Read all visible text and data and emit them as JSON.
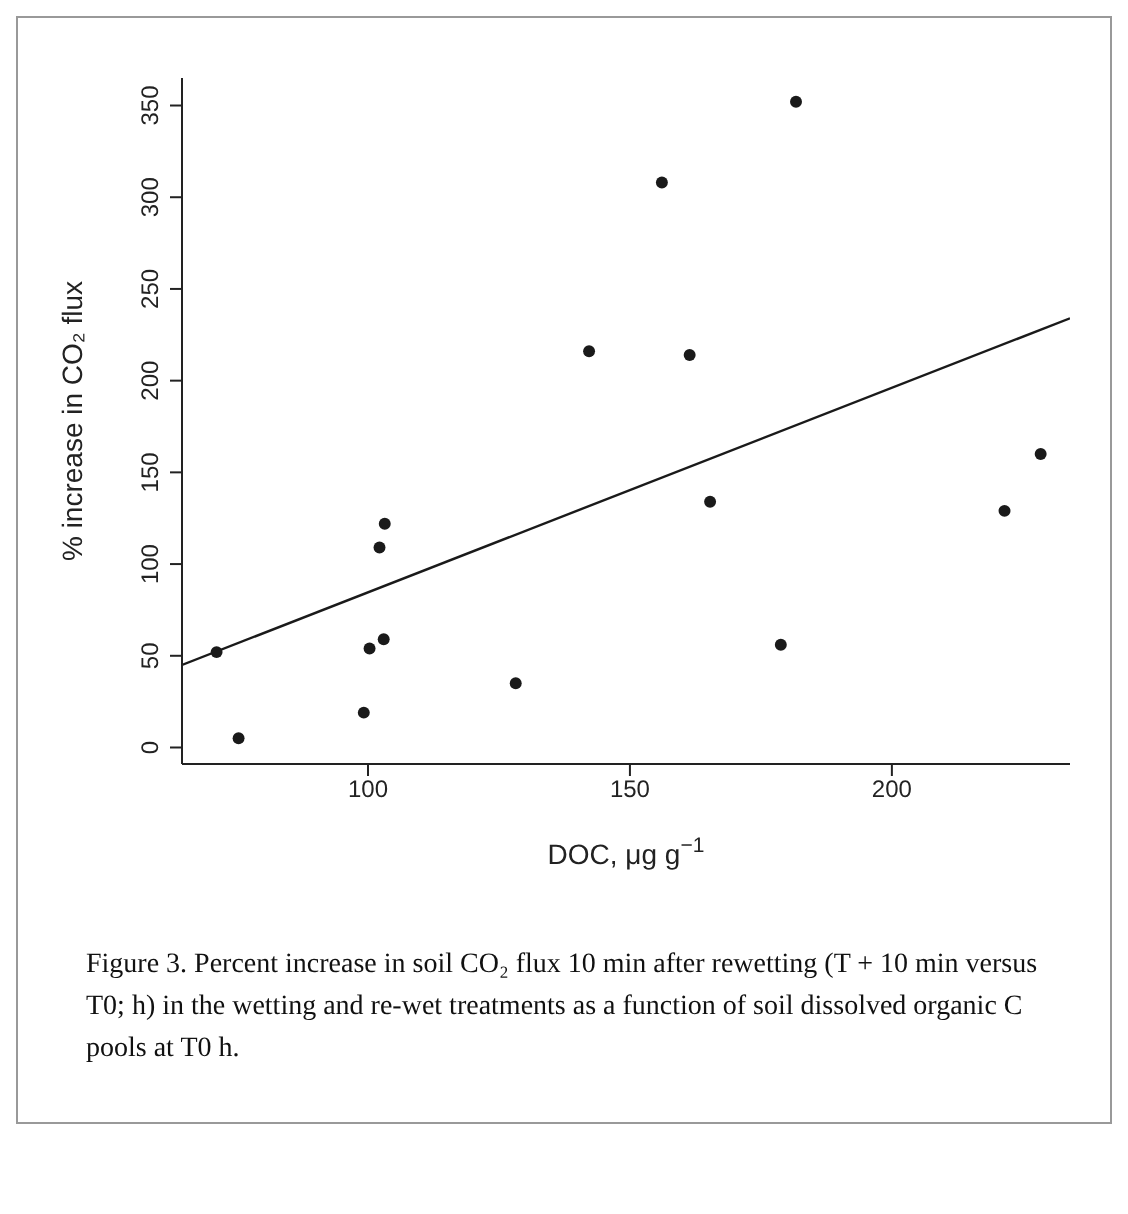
{
  "chart_data": {
    "type": "scatter",
    "xlabel": "DOC, μg g$^{−1}$",
    "ylabel": "% increase in CO₂ flux",
    "x": [
      71.1,
      75.3,
      99.2,
      100.3,
      103,
      102.2,
      103.2,
      128.2,
      142.2,
      156.1,
      181.7,
      161.4,
      165.3,
      178.8,
      221.5,
      228.4
    ],
    "series": [
      {
        "color": "#1a1a1a",
        "marker": "circle",
        "values": [
          52,
          5,
          19,
          54,
          59,
          109,
          122,
          35,
          216,
          308,
          352,
          214,
          134,
          56,
          129,
          160
        ]
      },
      {
        "type": "line",
        "color": "#1a1a1a",
        "x": [
          64.5,
          234
        ],
        "values": [
          45,
          234
        ]
      }
    ],
    "xlim": [
      64.5,
      234
    ],
    "ylim": [
      -9,
      365
    ],
    "xticks": [
      100,
      150,
      200
    ],
    "yticks": [
      0,
      50,
      100,
      150,
      200,
      250,
      300,
      350
    ],
    "grid": false,
    "annotations": [
      "Figure 3. Percent increase in soil CO₂ flux 10 min after rewetting (T + 10 min versus T0; h) in the wetting and re-wet treatments as a function of soil dissolved organic C pools at T0 h."
    ]
  }
}
